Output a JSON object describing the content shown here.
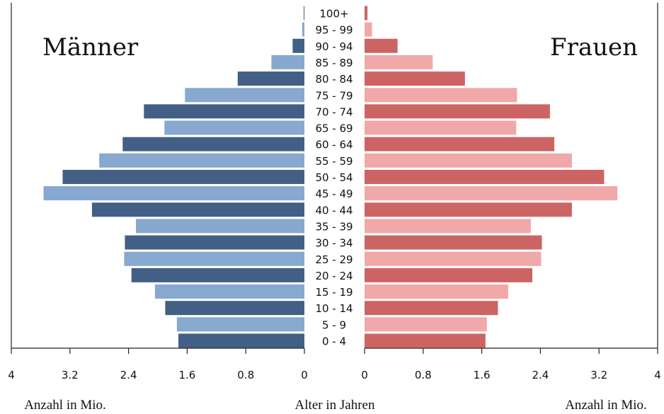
{
  "chart_data": {
    "type": "bar",
    "left_label": "Männer",
    "right_label": "Frauen",
    "categories": [
      "100+",
      "95 - 99",
      "90 - 94",
      "85 - 89",
      "80 - 84",
      "75 - 79",
      "70 - 74",
      "65 - 69",
      "60 - 64",
      "55 - 59",
      "50 - 54",
      "45 - 49",
      "40 - 44",
      "35 - 39",
      "30 - 34",
      "25 - 29",
      "20 - 24",
      "15 - 19",
      "10 - 14",
      "5 - 9",
      "0 - 4"
    ],
    "series": [
      {
        "name": "Männer",
        "values": [
          0.01,
          0.03,
          0.16,
          0.45,
          0.91,
          1.63,
          2.19,
          1.91,
          2.48,
          2.8,
          3.3,
          3.56,
          2.9,
          2.3,
          2.45,
          2.46,
          2.36,
          2.04,
          1.9,
          1.74,
          1.72
        ]
      },
      {
        "name": "Frauen",
        "values": [
          0.04,
          0.1,
          0.45,
          0.93,
          1.37,
          2.08,
          2.53,
          2.07,
          2.59,
          2.83,
          3.27,
          3.45,
          2.83,
          2.27,
          2.42,
          2.41,
          2.29,
          1.96,
          1.82,
          1.67,
          1.65
        ]
      }
    ],
    "colors": {
      "male_dark": "#425f85",
      "male_light": "#87a8cf",
      "female_dark": "#cd6464",
      "female_light": "#f0a8a8"
    },
    "x_ticks_left": [
      "4",
      "3.2",
      "2.4",
      "1.6",
      "0.8",
      "0"
    ],
    "x_ticks_right": [
      "0",
      "0.8",
      "1.6",
      "2.4",
      "3.2",
      "4"
    ],
    "xlim": [
      0,
      4
    ],
    "xlabel_left": "Anzahl in Mio.",
    "xlabel_center": "Alter in Jahren",
    "xlabel_right": "Anzahl in Mio."
  }
}
